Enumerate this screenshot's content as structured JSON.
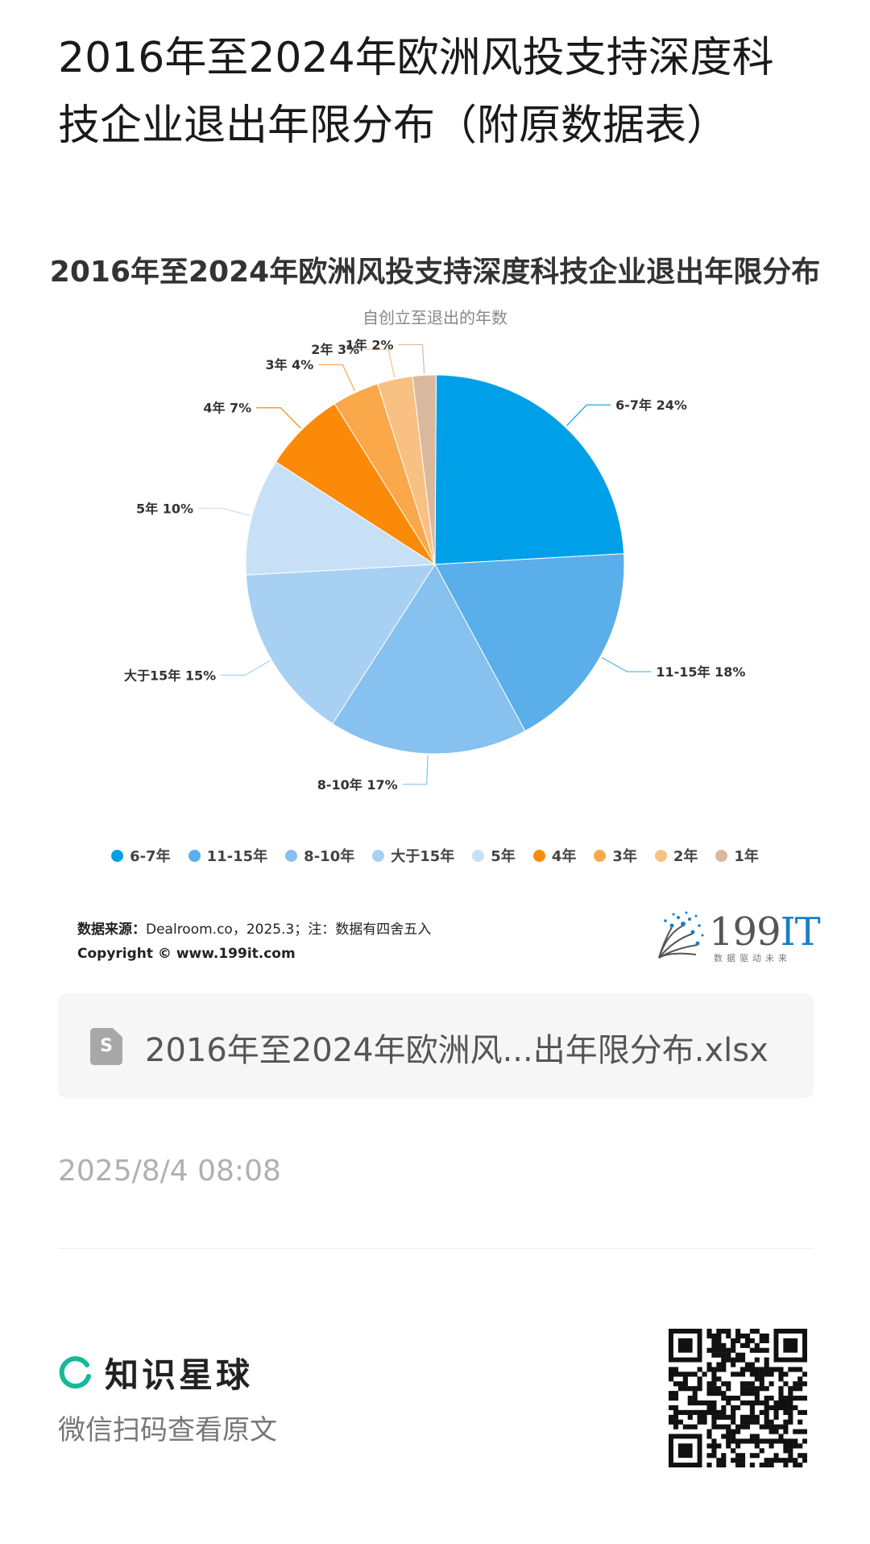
{
  "page": {
    "title": "2016年至2024年欧洲风投支持深度科技企业退出年限分布（附原数据表）"
  },
  "chart_data": {
    "type": "pie",
    "title": "2016年至2024年欧洲风投支持深度科技企业退出年限分布",
    "subtitle": "自创立至退出的年数",
    "slices": [
      {
        "label": "6-7年",
        "value": 24,
        "color": "#00a0e9",
        "data_label": "6-7年 24%"
      },
      {
        "label": "11-15年",
        "value": 18,
        "color": "#5aaeea",
        "data_label": "11-15年 18%"
      },
      {
        "label": "8-10年",
        "value": 17,
        "color": "#86c1ef",
        "data_label": "8-10年 17%"
      },
      {
        "label": "大于15年",
        "value": 15,
        "color": "#a7d0f3",
        "data_label": "大于15年 15%"
      },
      {
        "label": "5年",
        "value": 10,
        "color": "#c7e0f6",
        "data_label": "5年 10%"
      },
      {
        "label": "4年",
        "value": 7,
        "color": "#fb8a09",
        "data_label": "4年 7%"
      },
      {
        "label": "3年",
        "value": 4,
        "color": "#fba84a",
        "data_label": "3年 4%"
      },
      {
        "label": "2年",
        "value": 3,
        "color": "#f9c083",
        "data_label": "2年 3%"
      },
      {
        "label": "1年",
        "value": 2,
        "color": "#d9b99d",
        "data_label": "1年 2%"
      }
    ],
    "legend_position": "bottom"
  },
  "source": {
    "label": "数据来源：",
    "text": "Dealroom.co，2025.3；注：数据有四舍五入",
    "copyright": "Copyright ©  www.199it.com"
  },
  "logo": {
    "text_number": "199",
    "text_it": "IT",
    "tagline": "数据驱动未来"
  },
  "file": {
    "icon_letter": "S",
    "name": "2016年至2024年欧洲风...出年限分布.xlsx"
  },
  "timestamp": "2025/8/4 08:08",
  "footer": {
    "brand": "知识星球",
    "subtitle": "微信扫码查看原文"
  }
}
